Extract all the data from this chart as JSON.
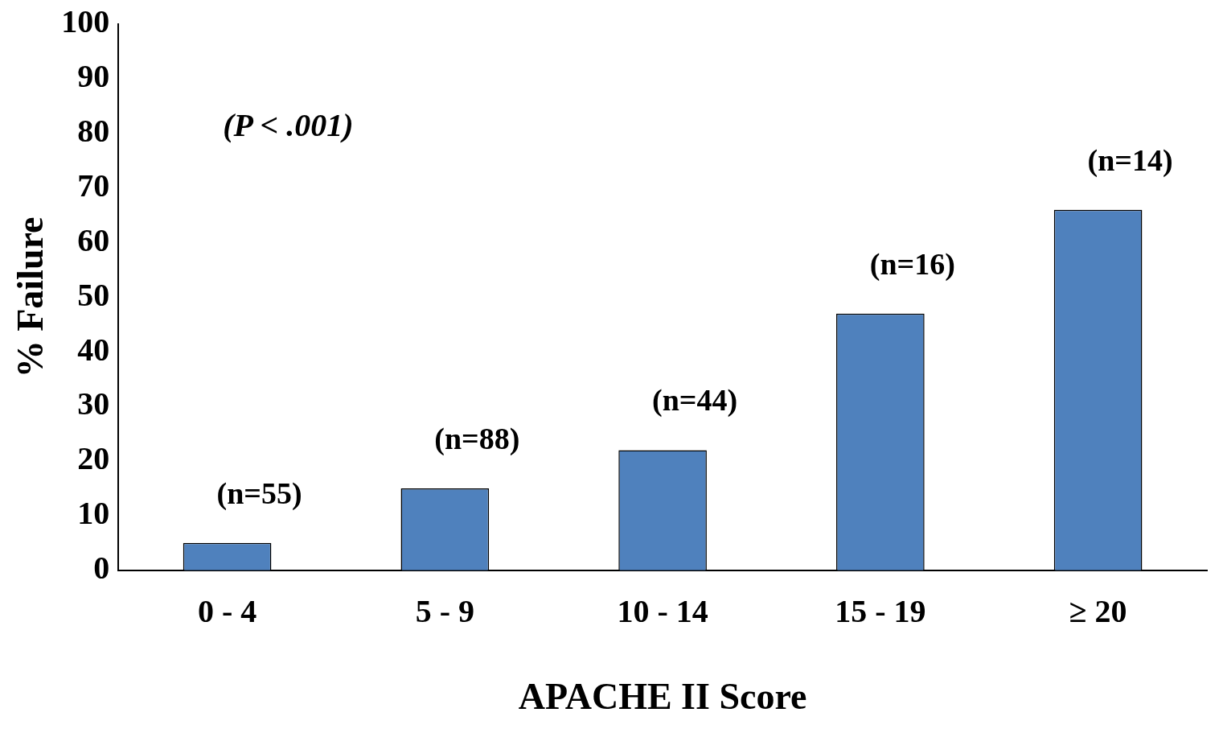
{
  "chart_data": {
    "type": "bar",
    "xlabel": "APACHE II Score",
    "ylabel": "% Failure",
    "categories": [
      "0 - 4",
      "5 - 9",
      "10 - 14",
      "15 - 19",
      "≥ 20"
    ],
    "values": [
      5,
      15,
      22,
      47,
      66
    ],
    "color": "#4f81bd",
    "ylim": [
      0,
      100
    ],
    "yticks": [
      0,
      10,
      20,
      30,
      40,
      50,
      60,
      70,
      80,
      90,
      100
    ],
    "grid": false,
    "legend": false,
    "annotations": [
      "(P < .001)",
      {
        "text": "(n=55)",
        "x": "0 - 4",
        "y": 5
      },
      {
        "text": "(n=88)",
        "x": "5 - 9",
        "y": 15
      },
      {
        "text": "(n=44)",
        "x": "10 - 14",
        "y": 22
      },
      {
        "text": "(n=16)",
        "x": "15 - 19",
        "y": 47
      },
      {
        "text": "(n=14)",
        "x": "≥ 20",
        "y": 66
      }
    ]
  }
}
